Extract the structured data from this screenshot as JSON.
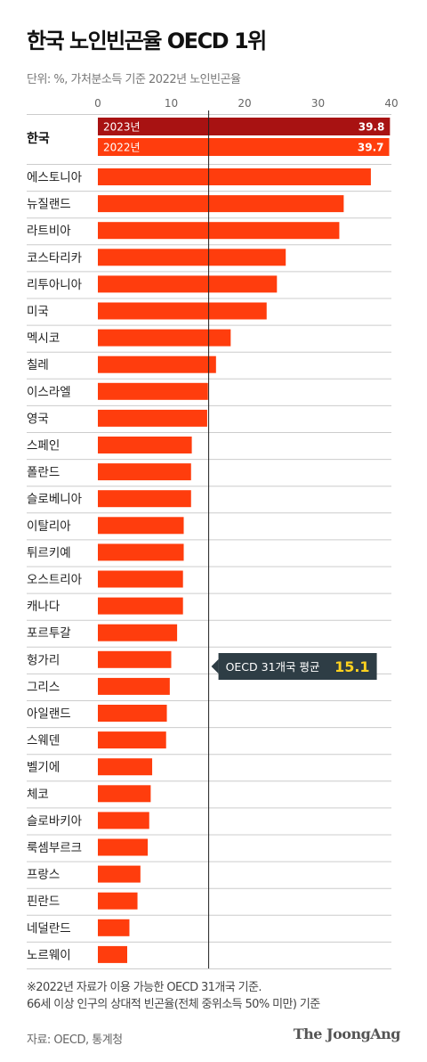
{
  "title": "한국 노인빈곤율 OECD 1위",
  "subtitle": "단위: %, 가처분소득 기준 2022년 노인빈곤율",
  "chart_data": {
    "type": "bar",
    "orientation": "horizontal",
    "xlim": [
      0,
      40
    ],
    "x_ticks": [
      "0",
      "10",
      "20",
      "30",
      "40"
    ],
    "grid": false,
    "korea": {
      "label": "한국",
      "bars": [
        {
          "name": "2023년",
          "value": 39.8,
          "value_label": "39.8",
          "color": "#a81212"
        },
        {
          "name": "2022년",
          "value": 39.7,
          "value_label": "39.7",
          "color": "#ff3d0d"
        }
      ]
    },
    "bar_color": "#ff3d0d",
    "categories": [
      "에스토니아",
      "뉴질랜드",
      "라트비아",
      "코스타리카",
      "리투아니아",
      "미국",
      "멕시코",
      "칠레",
      "이스라엘",
      "영국",
      "스페인",
      "폴란드",
      "슬로베니아",
      "이탈리아",
      "튀르키예",
      "오스트리아",
      "캐나다",
      "포르투갈",
      "헝가리",
      "그리스",
      "아일랜드",
      "스웨덴",
      "벨기에",
      "체코",
      "슬로바키아",
      "룩셈부르크",
      "프랑스",
      "핀란드",
      "네덜란드",
      "노르웨이"
    ],
    "values": [
      37.2,
      33.5,
      32.9,
      25.6,
      24.4,
      23.0,
      18.1,
      16.1,
      15.0,
      14.9,
      12.8,
      12.7,
      12.7,
      11.7,
      11.7,
      11.6,
      11.6,
      10.8,
      10.0,
      9.8,
      9.4,
      9.3,
      7.4,
      7.2,
      7.0,
      6.8,
      5.8,
      5.4,
      4.3,
      4.0
    ],
    "reference_line": {
      "value": 15.1,
      "label": "OECD 31개국 평균",
      "value_label": "15.1",
      "box_color": "#2e3d45",
      "value_color": "#ffd21f"
    }
  },
  "notes": [
    "※2022년 자료가 이용 가능한 OECD 31개국 기준.",
    "66세 이상 인구의 상대적 빈곤율(전체 중위소득 50% 미만) 기준"
  ],
  "source": "자료: OECD, 통계청",
  "brand": "The JoongAng"
}
